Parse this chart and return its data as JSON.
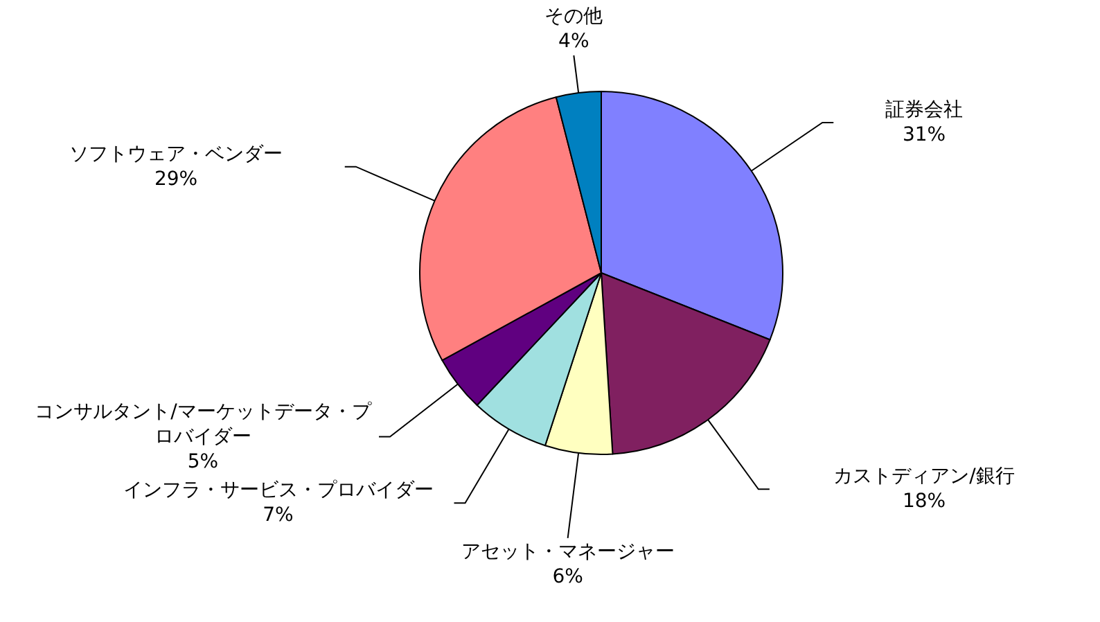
{
  "chart_data": {
    "type": "pie",
    "categories": [
      "証券会社",
      "カストディアン/銀行",
      "アセット・マネージャー",
      "インフラ・サービス・プロバイダー",
      "コンサルタント/マーケットデータ・プロバイダー",
      "ソフトウェア・ベンダー",
      "その他"
    ],
    "values": [
      31,
      18,
      6,
      7,
      5,
      29,
      4
    ],
    "colors": [
      "#8080ff",
      "#802060",
      "#ffffc0",
      "#a0e0e0",
      "#600080",
      "#ff8080",
      "#0080c0"
    ],
    "value_labels": [
      "31%",
      "18%",
      "6%",
      "7%",
      "5%",
      "29%",
      "4%"
    ]
  }
}
